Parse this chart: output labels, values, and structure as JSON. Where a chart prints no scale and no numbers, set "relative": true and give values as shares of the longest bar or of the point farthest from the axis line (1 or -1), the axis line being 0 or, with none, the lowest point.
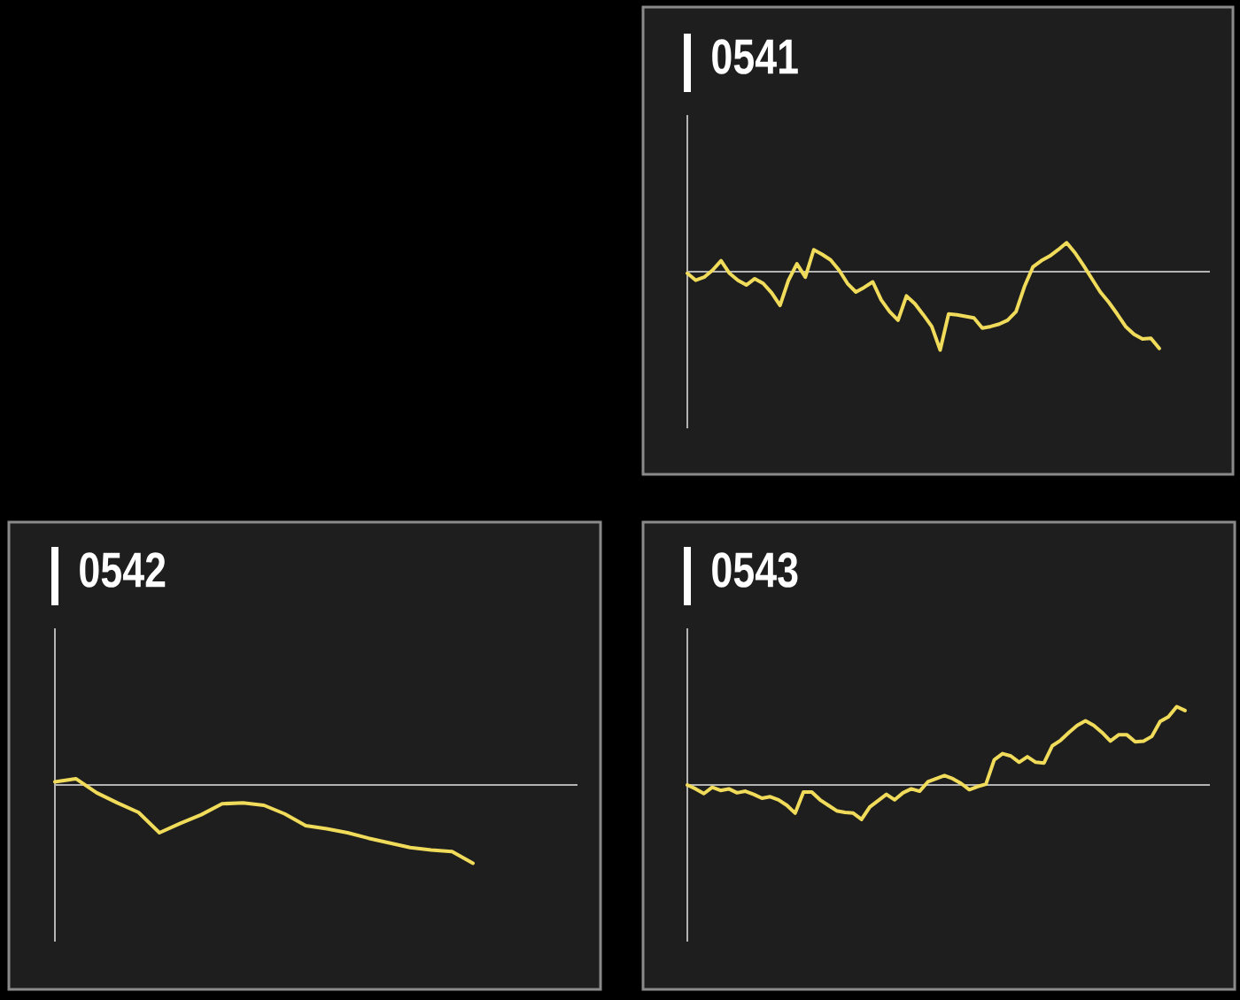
{
  "chart_data": [
    {
      "type": "line",
      "title": "0541",
      "relative": true,
      "color": "#f0dc5a",
      "categories": [
        null,
        null,
        null,
        null,
        null,
        null,
        null,
        null,
        null,
        null,
        null,
        null,
        null,
        null,
        null,
        null,
        null,
        null,
        null,
        null,
        null,
        null,
        null,
        null,
        null,
        null,
        null,
        null,
        null,
        null,
        null,
        null,
        null,
        null,
        null,
        null,
        null,
        null,
        null,
        null,
        null,
        null,
        null,
        null,
        null,
        null,
        null,
        null,
        null,
        null,
        null,
        null,
        null,
        null,
        null,
        null,
        null,
        null,
        null,
        null,
        null,
        null,
        null
      ],
      "values": [
        -0.02,
        -0.11,
        -0.07,
        0.02,
        0.14,
        -0.02,
        -0.11,
        -0.17,
        -0.09,
        -0.15,
        -0.27,
        -0.43,
        -0.11,
        0.1,
        -0.07,
        0.28,
        0.22,
        0.15,
        0.02,
        -0.15,
        -0.26,
        -0.2,
        -0.13,
        -0.36,
        -0.51,
        -0.62,
        -0.31,
        -0.41,
        -0.55,
        -0.7,
        -1,
        -0.54,
        -0.55,
        -0.57,
        -0.59,
        -0.72,
        -0.7,
        -0.67,
        -0.62,
        -0.51,
        -0.19,
        0.06,
        0.14,
        0.2,
        0.28,
        0.37,
        0.24,
        0.08,
        -0.09,
        -0.26,
        -0.39,
        -0.54,
        -0.7,
        -0.8,
        -0.86,
        -0.85,
        -0.98,
        null,
        null,
        null,
        null,
        null,
        null
      ]
    },
    {
      "type": "line",
      "title": "0542",
      "relative": true,
      "color": "#f0dc5a",
      "categories": [
        null,
        null,
        null,
        null,
        null,
        null,
        null,
        null,
        null,
        null,
        null,
        null,
        null,
        null,
        null,
        null,
        null,
        null,
        null,
        null,
        null,
        null,
        null,
        null,
        null,
        null
      ],
      "values": [
        0.04,
        0.08,
        -0.1,
        -0.23,
        -0.35,
        -0.61,
        -0.49,
        -0.38,
        -0.24,
        -0.23,
        -0.26,
        -0.37,
        -0.52,
        -0.56,
        -0.61,
        -0.68,
        -0.74,
        -0.8,
        -0.83,
        -0.85,
        -1,
        null,
        null,
        null,
        null,
        null
      ]
    },
    {
      "type": "line",
      "title": "0543",
      "relative": true,
      "color": "#f0dc5a",
      "categories": [
        null,
        null,
        null,
        null,
        null,
        null,
        null,
        null,
        null,
        null,
        null,
        null,
        null,
        null,
        null,
        null,
        null,
        null,
        null,
        null,
        null,
        null,
        null,
        null,
        null,
        null,
        null,
        null,
        null,
        null,
        null,
        null,
        null,
        null,
        null,
        null,
        null,
        null,
        null,
        null,
        null,
        null,
        null,
        null,
        null,
        null,
        null,
        null,
        null,
        null,
        null,
        null,
        null,
        null,
        null,
        null,
        null,
        null,
        null,
        null,
        null,
        null,
        null,
        null
      ],
      "values": [
        0,
        -0.05,
        -0.11,
        -0.03,
        -0.07,
        -0.05,
        -0.1,
        -0.08,
        -0.12,
        -0.17,
        -0.15,
        -0.19,
        -0.26,
        -0.36,
        -0.09,
        -0.09,
        -0.19,
        -0.26,
        -0.33,
        -0.35,
        -0.36,
        -0.44,
        -0.28,
        -0.2,
        -0.12,
        -0.19,
        -0.1,
        -0.05,
        -0.08,
        0.04,
        0.08,
        0.12,
        0.08,
        0.02,
        -0.06,
        -0.02,
        0.01,
        0.32,
        0.4,
        0.37,
        0.29,
        0.36,
        0.29,
        0.28,
        0.5,
        0.57,
        0.67,
        0.76,
        0.82,
        0.76,
        0.67,
        0.56,
        0.64,
        0.64,
        0.55,
        0.56,
        0.62,
        0.81,
        0.87,
        1,
        0.95,
        null,
        null,
        null
      ]
    }
  ]
}
